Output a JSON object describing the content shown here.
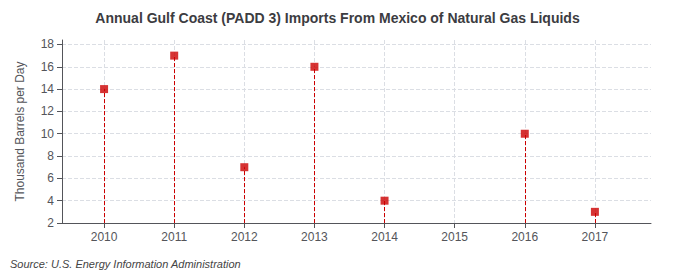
{
  "chart_data": {
    "type": "scatter",
    "title": "Annual Gulf Coast (PADD 3) Imports From Mexico of Natural Gas Liquids",
    "ylabel": "Thousand Barrels per Day",
    "annotations": [
      "Source: U.S. Energy Information Administration"
    ],
    "x": [
      2010,
      2011,
      2012,
      2013,
      2014,
      2016,
      2017
    ],
    "values": [
      14,
      17,
      7,
      16,
      4,
      10,
      3
    ],
    "xlim": [
      2009.4,
      2017.8
    ],
    "ylim": [
      2,
      18.4
    ],
    "xticks": [
      2010,
      2011,
      2012,
      2013,
      2014,
      2015,
      2016,
      2017
    ],
    "yticks": [
      2,
      4,
      6,
      8,
      10,
      12,
      14,
      16,
      18
    ],
    "color": "#cc0000",
    "marker": "square",
    "line_style": "dashed",
    "grid": true
  }
}
